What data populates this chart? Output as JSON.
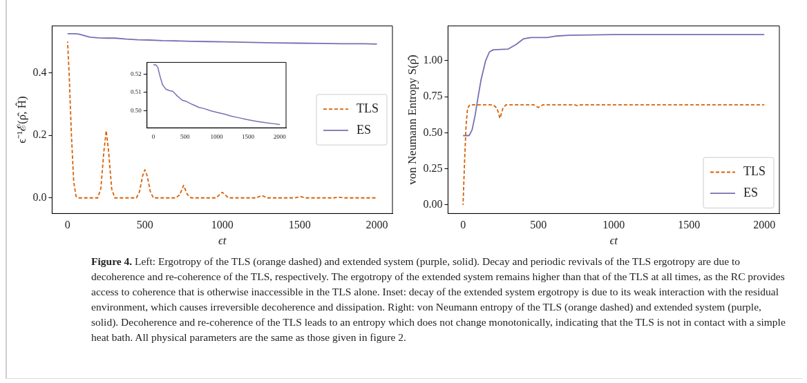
{
  "chart_data": [
    {
      "type": "line",
      "xlabel": "ϵt",
      "ylabel": "ϵ⁻¹ℰ(ρ̂, Ĥ)",
      "xlim": [
        -100,
        2100
      ],
      "xticks": [
        0,
        500,
        1000,
        1500,
        2000
      ],
      "ylim": [
        -0.05,
        0.55
      ],
      "yticks": [
        {
          "value": 0,
          "label": "0.0"
        },
        {
          "value": 0.2,
          "label": "0.2"
        },
        {
          "value": 0.4,
          "label": "0.4"
        }
      ],
      "legend": "right",
      "grid": false,
      "series": [
        {
          "name": "TLS",
          "color": "#d95f02",
          "line_style": "dashed",
          "x": [
            0,
            10,
            25,
            40,
            55,
            70,
            195,
            215,
            235,
            250,
            265,
            285,
            305,
            445,
            465,
            485,
            500,
            515,
            535,
            555,
            700,
            725,
            750,
            775,
            800,
            960,
            1000,
            1040,
            1220,
            1255,
            1290,
            1470,
            1505,
            1540,
            1720,
            1755,
            1790,
            2000
          ],
          "values": [
            0.5,
            0.4,
            0.2,
            0.05,
            0.005,
            0,
            0,
            0.03,
            0.15,
            0.215,
            0.15,
            0.03,
            0,
            0,
            0.02,
            0.07,
            0.09,
            0.07,
            0.02,
            0,
            0,
            0.01,
            0.04,
            0.01,
            0,
            0,
            0.018,
            0,
            0,
            0.008,
            0,
            0,
            0.004,
            0,
            0,
            0.002,
            0,
            0
          ]
        },
        {
          "name": "ES",
          "color": "#7570b3",
          "line_style": "solid",
          "x": [
            0,
            43,
            72,
            108,
            145,
            199,
            253,
            308,
            380,
            453,
            525,
            616,
            725,
            797,
            906,
            1014,
            1123,
            1230,
            1340,
            1483,
            1628,
            1772,
            1917,
            2000
          ],
          "values": [
            0.525,
            0.525,
            0.524,
            0.519,
            0.514,
            0.512,
            0.511,
            0.511,
            0.508,
            0.506,
            0.505,
            0.503,
            0.502,
            0.501,
            0.5,
            0.499,
            0.498,
            0.497,
            0.496,
            0.495,
            0.494,
            0.493,
            0.493,
            0.492
          ]
        }
      ],
      "annotations": [
        "Figure 4.",
        "Left: Ergotropy of the TLS (orange dashed) and extended system (purple, solid). Decay and periodic revivals of the TLS ergotropy are due to decoherence and re-coherence of the TLS, respectively. The ergotropy of the extended system remains higher than that of the TLS at all times, as the RC provides access to coherence that is otherwise inaccessible in the TLS alone. Inset: decay of the extended system ergotropy is due to its weak interaction with the residual environment, which causes irreversible decoherence and dissipation. Right: von Neumann entropy of the TLS (orange dashed) and extended system (purple, solid). Decoherence and re-coherence of the TLS leads to an entropy which does not change monotonically, indicating that the TLS is not in contact with a simple heat bath. All physical parameters are the same as those given in figure 2."
      ]
    },
    {
      "type": "line",
      "xlim": [
        -100,
        2100
      ],
      "xticks": [
        0,
        500,
        1000,
        1500,
        2000
      ],
      "ylim": [
        0.4906,
        0.5264
      ],
      "yticks": [
        {
          "value": 0.5,
          "label": "0.50"
        },
        {
          "value": 0.51,
          "label": "0.51"
        },
        {
          "value": 0.52,
          "label": "0.52"
        }
      ],
      "grid": false,
      "series": [
        {
          "color": "#7570b3",
          "line_style": "solid",
          "x": [
            0,
            43,
            72,
            108,
            145,
            199,
            253,
            308,
            380,
            453,
            525,
            616,
            725,
            797,
            906,
            1014,
            1123,
            1230,
            1340,
            1483,
            1628,
            1772,
            1917,
            2000
          ],
          "values": [
            0.525,
            0.525,
            0.5236,
            0.5186,
            0.5142,
            0.5117,
            0.511,
            0.5106,
            0.508,
            0.5058,
            0.505,
            0.5034,
            0.5017,
            0.5012,
            0.4999,
            0.499,
            0.4981,
            0.497,
            0.4962,
            0.4951,
            0.4942,
            0.4934,
            0.4928,
            0.4924
          ]
        }
      ]
    },
    {
      "type": "line",
      "xlabel": "ϵt",
      "ylabel": "von Neumann Entropy S(ρ̂)",
      "xlim": [
        -100,
        2100
      ],
      "xticks": [
        0,
        500,
        1000,
        1500,
        2000
      ],
      "ylim": [
        -0.06,
        1.24
      ],
      "yticks": [
        {
          "value": 0,
          "label": "0.00"
        },
        {
          "value": 0.25,
          "label": "0.25"
        },
        {
          "value": 0.5,
          "label": "0.50"
        },
        {
          "value": 0.75,
          "label": "0.75"
        },
        {
          "value": 1,
          "label": "1.00"
        }
      ],
      "legend": "bottom right",
      "grid": false,
      "series": [
        {
          "name": "TLS",
          "color": "#d95f02",
          "line_style": "dashed",
          "x": [
            0,
            10,
            20,
            30,
            45,
            200,
            225,
            245,
            265,
            285,
            470,
            500,
            530,
            740,
            760,
            780,
            2000
          ],
          "values": [
            0,
            0.3,
            0.55,
            0.67,
            0.693,
            0.693,
            0.67,
            0.6,
            0.67,
            0.693,
            0.693,
            0.675,
            0.693,
            0.693,
            0.688,
            0.693,
            0.693
          ]
        },
        {
          "name": "ES",
          "color": "#7570b3",
          "line_style": "solid",
          "x": [
            0,
            40,
            60,
            80,
            100,
            120,
            150,
            175,
            200,
            300,
            350,
            400,
            450,
            560,
            620,
            700,
            1000,
            2000
          ],
          "values": [
            0.48,
            0.48,
            0.52,
            0.62,
            0.75,
            0.87,
            1.0,
            1.06,
            1.075,
            1.08,
            1.11,
            1.15,
            1.16,
            1.16,
            1.17,
            1.175,
            1.18,
            1.18
          ]
        }
      ]
    }
  ]
}
